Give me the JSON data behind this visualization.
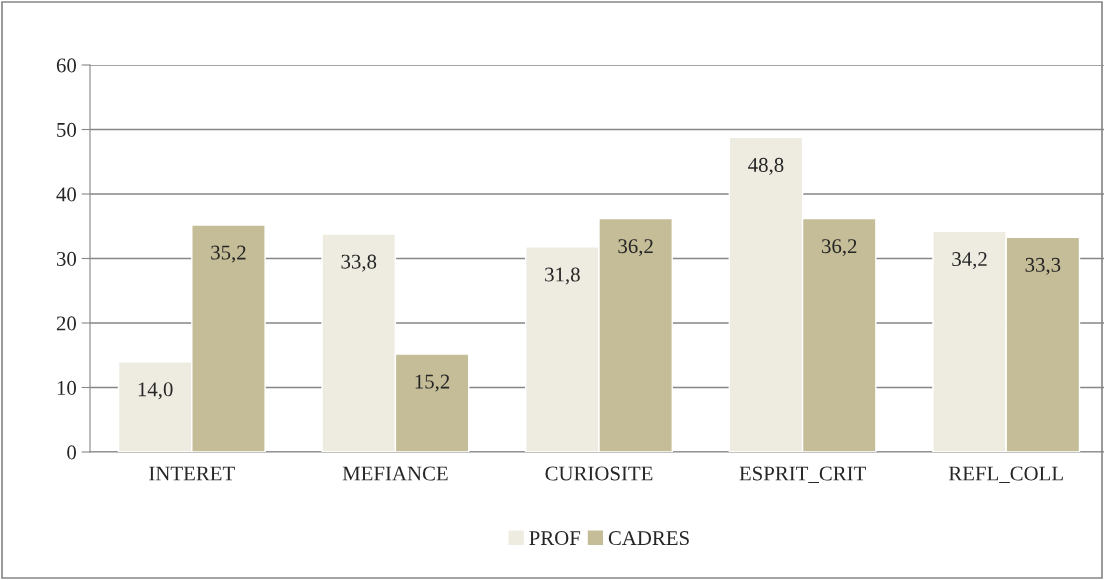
{
  "chart_data": {
    "type": "bar",
    "categories": [
      "INTERET",
      "MEFIANCE",
      "CURIOSITE",
      "ESPRIT_CRIT",
      "REFL_COLL"
    ],
    "series": [
      {
        "name": "PROF",
        "color": "#eeece1",
        "values": [
          14.0,
          33.8,
          31.8,
          48.8,
          34.2
        ],
        "value_labels": [
          "14,0",
          "33,8",
          "31,8",
          "48,8",
          "34,2"
        ]
      },
      {
        "name": "CADRES",
        "color": "#c4bd97",
        "values": [
          35.2,
          15.2,
          36.2,
          36.2,
          33.3
        ],
        "value_labels": [
          "35,2",
          "15,2",
          "36,2",
          "36,2",
          "33,3"
        ]
      }
    ],
    "ylim": [
      0,
      60
    ],
    "yticks": [
      0,
      10,
      20,
      30,
      40,
      50,
      60
    ],
    "grid": "y",
    "legend": "bottom"
  }
}
